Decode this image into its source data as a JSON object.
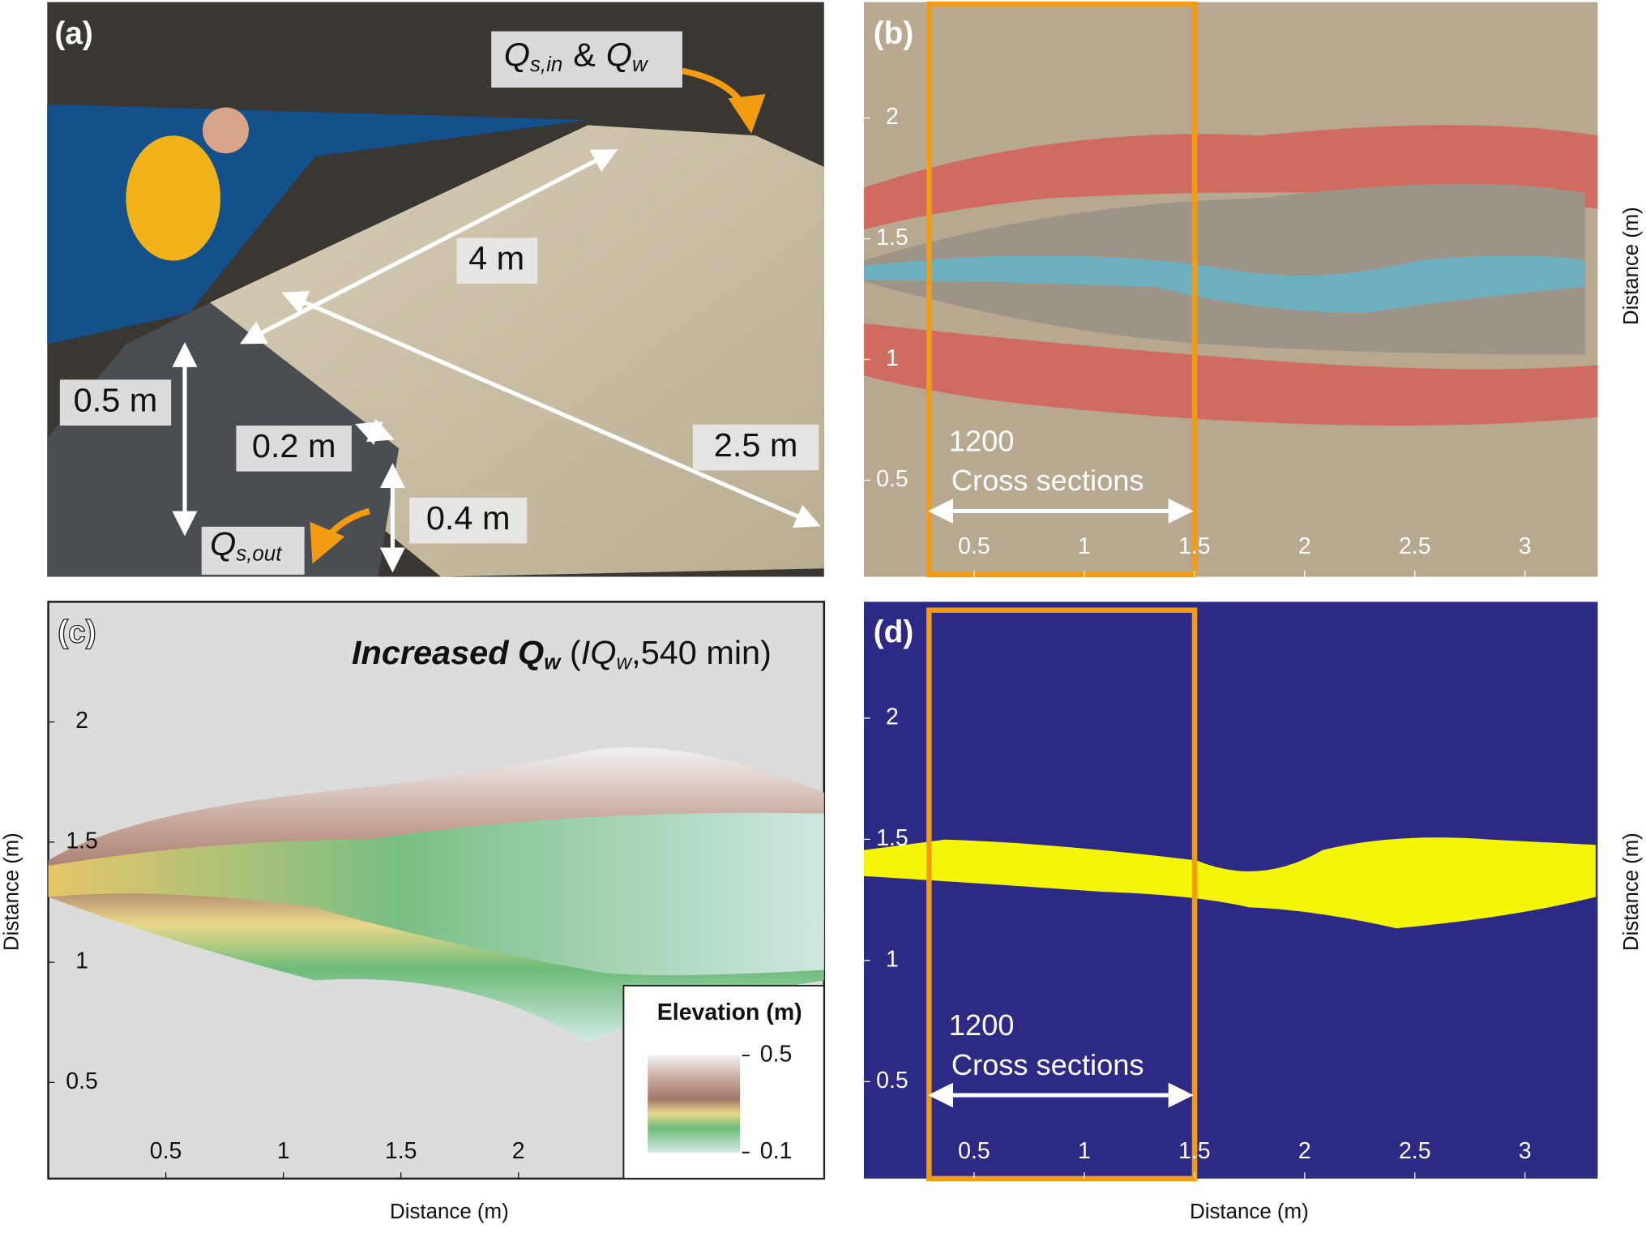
{
  "panels": {
    "a": {
      "label": "(a)",
      "inflow": {
        "q1": "Q",
        "sub1": "s,in",
        "amp": "&",
        "q2": "Q",
        "sub2": "w"
      },
      "outflow": {
        "q": "Q",
        "sub": "s,out"
      },
      "length": "4 m",
      "width": "2.5 m",
      "depth": "0.5 m",
      "gap": "0.2 m",
      "outlet": "0.4 m"
    },
    "b": {
      "label": "(b)",
      "xlim": [
        0,
        3.33
      ],
      "ylim": [
        0.1,
        2.48
      ],
      "xticks": [
        0.5,
        1,
        1.5,
        2,
        2.5,
        3
      ],
      "yticks": [
        0.5,
        1,
        1.5,
        2
      ],
      "ylabel": "Distance (m)",
      "count": "1200",
      "count_label": "Cross sections"
    },
    "c": {
      "label": "(c)",
      "title": {
        "bold": "Increased Q",
        "bold_sub": "w",
        "open": " (",
        "italic": "IQ",
        "italic_sub": "w",
        "rest": ",540 min)"
      },
      "xlim": [
        0,
        3.3
      ],
      "ylim": [
        0.1,
        2.5
      ],
      "xticks": [
        0.5,
        1,
        1.5,
        2
      ],
      "yticks": [
        0.5,
        1,
        1.5,
        2
      ],
      "xlabel": "Distance (m)",
      "ylabel": "Distance (m)",
      "colorbar": {
        "title": "Elevation (m)",
        "lim": [
          0.1,
          0.5
        ],
        "ticks": [
          0.1,
          0.5
        ]
      }
    },
    "d": {
      "label": "(d)",
      "xlim": [
        0,
        3.33
      ],
      "ylim": [
        0.1,
        2.48
      ],
      "xticks": [
        0.5,
        1,
        1.5,
        2,
        2.5,
        3
      ],
      "yticks": [
        0.5,
        1,
        1.5,
        2
      ],
      "xlabel": "Distance (m)",
      "ylabel": "Distance (m)",
      "count": "1200",
      "count_label": "Cross sections"
    }
  }
}
